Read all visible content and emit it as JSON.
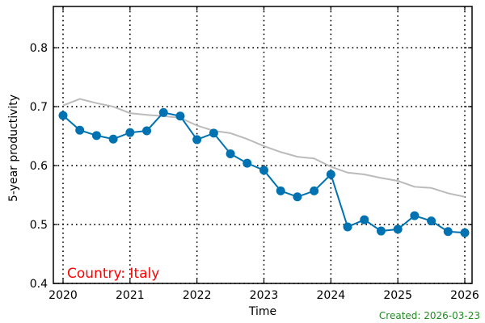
{
  "chart_data": {
    "type": "line",
    "xlabel": "Time",
    "ylabel": "5-year productivity",
    "xlim": [
      2020,
      2026
    ],
    "ylim": [
      0.4,
      0.87
    ],
    "xticks": [
      2020,
      2021,
      2022,
      2023,
      2024,
      2025,
      2026
    ],
    "xtick_labels": [
      "2020",
      "2021",
      "2022",
      "2023",
      "2024",
      "2025",
      "2026"
    ],
    "yticks": [
      0.4,
      0.5,
      0.6,
      0.7,
      0.8
    ],
    "ytick_labels": [
      "0.4",
      "0.5",
      "0.6",
      "0.7",
      "0.8"
    ],
    "grid": "dotted",
    "legend": "none",
    "annotation": "Country: Italy",
    "series": [
      {
        "role": "country",
        "color": "#0072b2",
        "marker": "circle",
        "x": [
          2020.0,
          2020.25,
          2020.5,
          2020.75,
          2021.0,
          2021.25,
          2021.5,
          2021.75,
          2022.0,
          2022.25,
          2022.5,
          2022.75,
          2023.0,
          2023.25,
          2023.5,
          2023.75,
          2024.0,
          2024.25,
          2024.5,
          2024.75,
          2025.0,
          2025.25,
          2025.5,
          2025.75,
          2026.0
        ],
        "y": [
          0.685,
          0.66,
          0.651,
          0.645,
          0.656,
          0.659,
          0.69,
          0.684,
          0.644,
          0.655,
          0.62,
          0.604,
          0.592,
          0.557,
          0.547,
          0.557,
          0.585,
          0.496,
          0.508,
          0.489,
          0.492,
          0.515,
          0.506,
          0.488,
          0.486
        ]
      },
      {
        "role": "reference",
        "color": "#bbbbbb",
        "marker": "none",
        "x": [
          2020.0,
          2020.25,
          2020.5,
          2020.75,
          2021.0,
          2021.25,
          2021.5,
          2021.75,
          2022.0,
          2022.25,
          2022.5,
          2022.75,
          2023.0,
          2023.25,
          2023.5,
          2023.75,
          2024.0,
          2024.25,
          2024.5,
          2024.75,
          2025.0,
          2025.25,
          2025.5,
          2025.75,
          2026.0
        ],
        "y": [
          0.702,
          0.713,
          0.706,
          0.7,
          0.689,
          0.686,
          0.684,
          0.681,
          0.668,
          0.659,
          0.655,
          0.645,
          0.633,
          0.623,
          0.615,
          0.612,
          0.598,
          0.588,
          0.585,
          0.579,
          0.574,
          0.564,
          0.562,
          0.553,
          0.547
        ]
      }
    ]
  },
  "colors": {
    "annotation": "#ff0000",
    "footer": "#228b22",
    "axis": "#000000",
    "grid": "#000000"
  },
  "footer": {
    "text": "Created: 2026-03-23"
  }
}
